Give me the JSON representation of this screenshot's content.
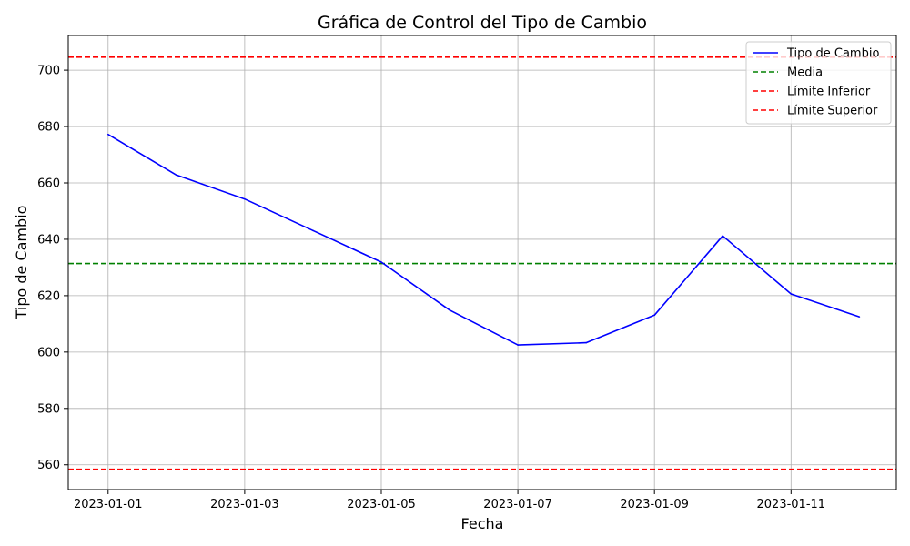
{
  "chart_data": {
    "type": "line",
    "title": "Gráfica de Control del Tipo de Cambio",
    "xlabel": "Fecha",
    "ylabel": "Tipo de Cambio",
    "x": [
      "2023-01-01",
      "2023-01-02",
      "2023-01-03",
      "2023-01-04",
      "2023-01-05",
      "2023-01-06",
      "2023-01-07",
      "2023-01-08",
      "2023-01-09",
      "2023-01-10",
      "2023-01-11",
      "2023-01-12"
    ],
    "x_ticks": [
      "2023-01-01",
      "2023-01-03",
      "2023-01-05",
      "2023-01-07",
      "2023-01-09",
      "2023-01-11"
    ],
    "xlim": [
      "2022-12-31T10:00",
      "2023-01-12T13:00"
    ],
    "y_ticks": [
      560,
      580,
      600,
      620,
      640,
      660,
      680,
      700
    ],
    "ylim": [
      551.2,
      712.3
    ],
    "grid": true,
    "legend_position": "top-right",
    "series": [
      {
        "name": "Tipo de Cambio",
        "style": "solid",
        "color": "#0000ff",
        "values": [
          677.2,
          662.8,
          654.3,
          643.1,
          631.9,
          614.9,
          602.5,
          603.3,
          613.1,
          641.2,
          620.6,
          612.5
        ]
      }
    ],
    "reference_lines": [
      {
        "name": "Media",
        "value": 631.4,
        "style": "dashed",
        "color": "#008000"
      },
      {
        "name": "Límite Inferior",
        "value": 558.4,
        "style": "dashed",
        "color": "#ff0000"
      },
      {
        "name": "Límite Superior",
        "value": 704.6,
        "style": "dashed",
        "color": "#ff0000"
      }
    ]
  }
}
